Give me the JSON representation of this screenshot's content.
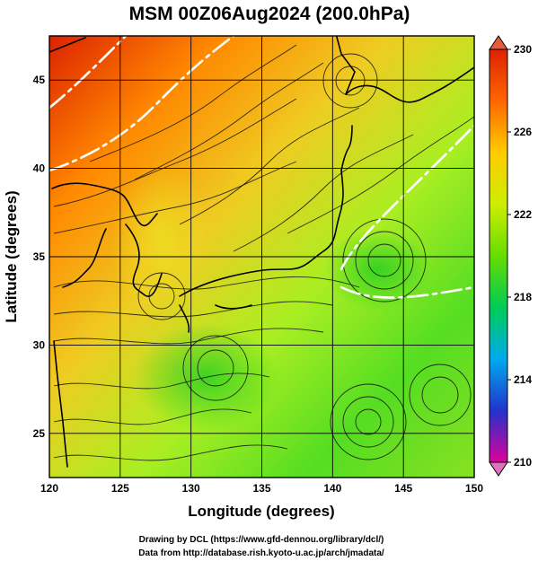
{
  "title": "MSM 00Z06Aug2024 (200.0hPa)",
  "xlabel": "Longitude (degrees)",
  "ylabel": "Latitude  (degrees)",
  "xticks": [
    "120",
    "125",
    "130",
    "135",
    "140",
    "145",
    "150"
  ],
  "yticks": [
    "45",
    "40",
    "35",
    "30",
    "25"
  ],
  "colorbar": {
    "ticks": [
      "230",
      "226",
      "222",
      "218",
      "214",
      "210"
    ],
    "min": 210,
    "max": 230,
    "colors": [
      "#e0009b",
      "#2233cc",
      "#00aaee",
      "#00cc55",
      "#66dd00",
      "#ccee00",
      "#ffcc00",
      "#ff6600",
      "#dd2200"
    ]
  },
  "map": {
    "lon_range": [
      120,
      150
    ],
    "lat_range": [
      22.5,
      47.5
    ],
    "grid_lon": [
      125,
      130,
      135,
      140,
      145
    ],
    "grid_lat": [
      25,
      30,
      35,
      40,
      45
    ],
    "field_colors": [
      "#dd2200",
      "#ff8800",
      "#eecc22",
      "#aaee22",
      "#55dd22",
      "#88e022"
    ]
  },
  "credits": [
    "Drawing by DCL (https://www.gfd-dennou.org/library/dcl/)",
    "Data from http://database.rish.kyoto-u.ac.jp/arch/jmadata/"
  ]
}
